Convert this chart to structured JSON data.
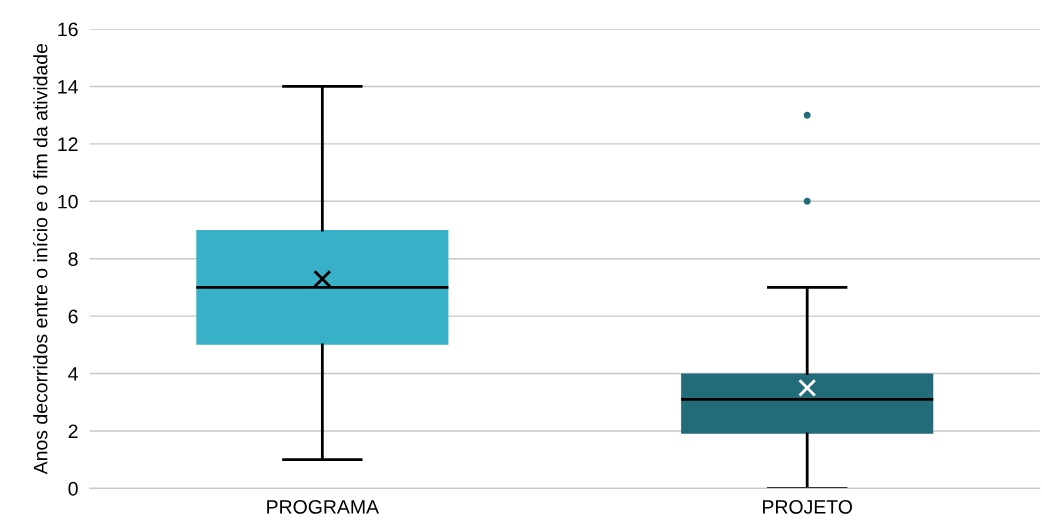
{
  "chart_data": {
    "type": "box",
    "ylabel": "Anos decorridos entre o início e o fim da atividade",
    "categories": [
      "PROGRAMA",
      "PROJETO"
    ],
    "colors": [
      "#38b0c8",
      "#226b78"
    ],
    "boxes": [
      {
        "low": 1,
        "q1": 5,
        "median": 7,
        "q3": 9,
        "high": 14,
        "mean": 7.3
      },
      {
        "low": 0,
        "q1": 1.9,
        "median": 3.1,
        "q3": 4,
        "high": 7,
        "mean": 3.5,
        "outliers": [
          10,
          13
        ]
      }
    ],
    "ylim": [
      0,
      16
    ],
    "yticks": [
      0,
      2,
      4,
      6,
      8,
      10,
      12,
      14,
      16
    ],
    "grid": "y",
    "marker": "cross"
  }
}
